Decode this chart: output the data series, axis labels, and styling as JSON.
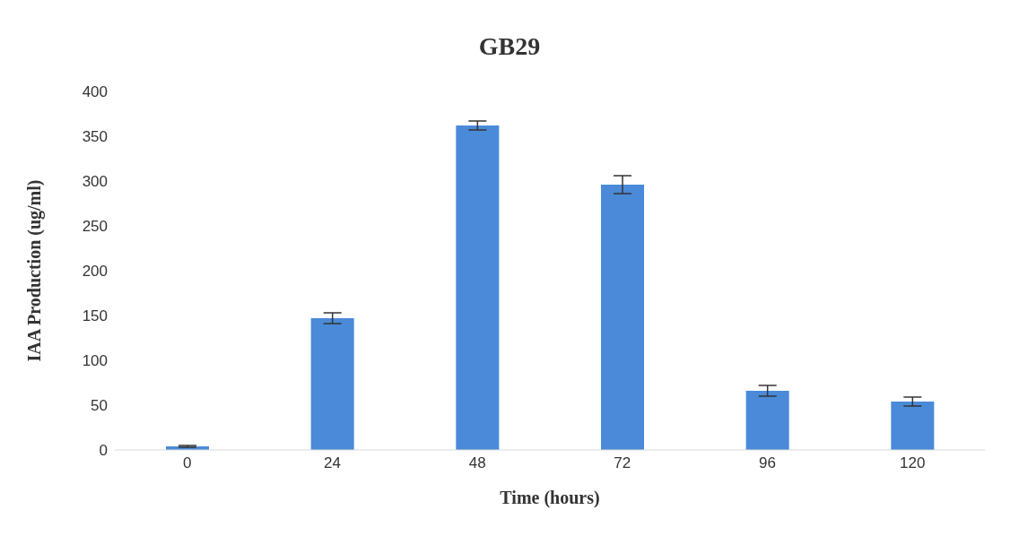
{
  "chart_data": {
    "type": "bar",
    "title": "GB29",
    "xlabel": "Time (hours)",
    "ylabel": "IAA Production (ug/ml)",
    "categories": [
      "0",
      "24",
      "48",
      "72",
      "96",
      "120"
    ],
    "values": [
      4,
      147,
      362,
      296,
      66,
      54
    ],
    "errors": [
      1,
      6,
      5,
      10,
      6,
      5
    ],
    "color": "#4a8ad8",
    "ylim": [
      0,
      400
    ],
    "yticks": [
      0,
      50,
      100,
      150,
      200,
      250,
      300,
      350,
      400
    ],
    "grid": false
  }
}
